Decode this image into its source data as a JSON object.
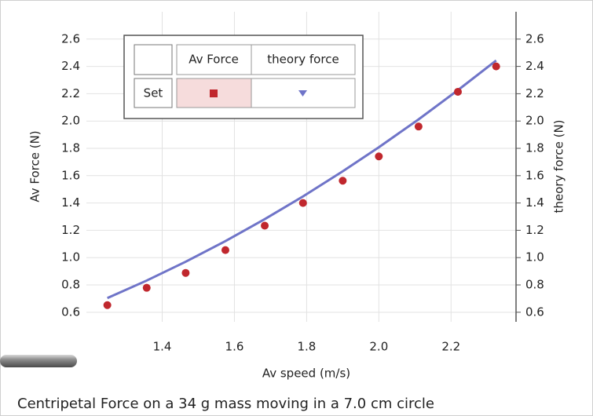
{
  "chart_data": {
    "type": "scatter",
    "title": "Centripetal Force on a 34 g mass moving in a 7.0 cm circle",
    "x_label": "Av speed (m/s)",
    "y_label": "Av Force (N)",
    "y2_label": "theory force (N)",
    "legend_row_label": "Set",
    "x": [
      1.248,
      1.357,
      1.465,
      1.575,
      1.684,
      1.79,
      1.9,
      2.0,
      2.11,
      2.219,
      2.325
    ],
    "series": [
      {
        "name": "Av Force",
        "color": "#c0272d",
        "mode": "markers",
        "values": [
          0.652,
          0.779,
          0.888,
          1.055,
          1.234,
          1.4,
          1.563,
          1.741,
          1.96,
          2.214,
          2.4
        ]
      },
      {
        "name": "theory force",
        "color": "#6f74c8",
        "mode": "line",
        "axis": "y2",
        "values": [
          0.704,
          0.832,
          0.97,
          1.121,
          1.282,
          1.448,
          1.632,
          1.808,
          2.012,
          2.226,
          2.443
        ]
      }
    ],
    "xlim": [
      1.19,
      2.38
    ],
    "xticks": [
      1.4,
      1.6,
      1.8,
      {
        "value": 2,
        "label": "2.0"
      },
      2.2
    ],
    "ylim": [
      0.53,
      2.8
    ],
    "yticks": [
      0.6,
      0.8,
      {
        "value": 1,
        "label": "1.0"
      },
      1.2,
      1.4,
      1.6,
      1.8,
      {
        "value": 2,
        "label": "2.0"
      },
      2.2,
      2.4,
      2.6
    ],
    "y2lim": [
      0.53,
      2.8
    ],
    "y2ticks": [
      0.6,
      0.8,
      {
        "value": 1,
        "label": "1.0"
      },
      1.2,
      1.4,
      1.6,
      1.8,
      {
        "value": 2,
        "label": "2.0"
      },
      2.2,
      2.4,
      2.6
    ],
    "grid": true
  }
}
